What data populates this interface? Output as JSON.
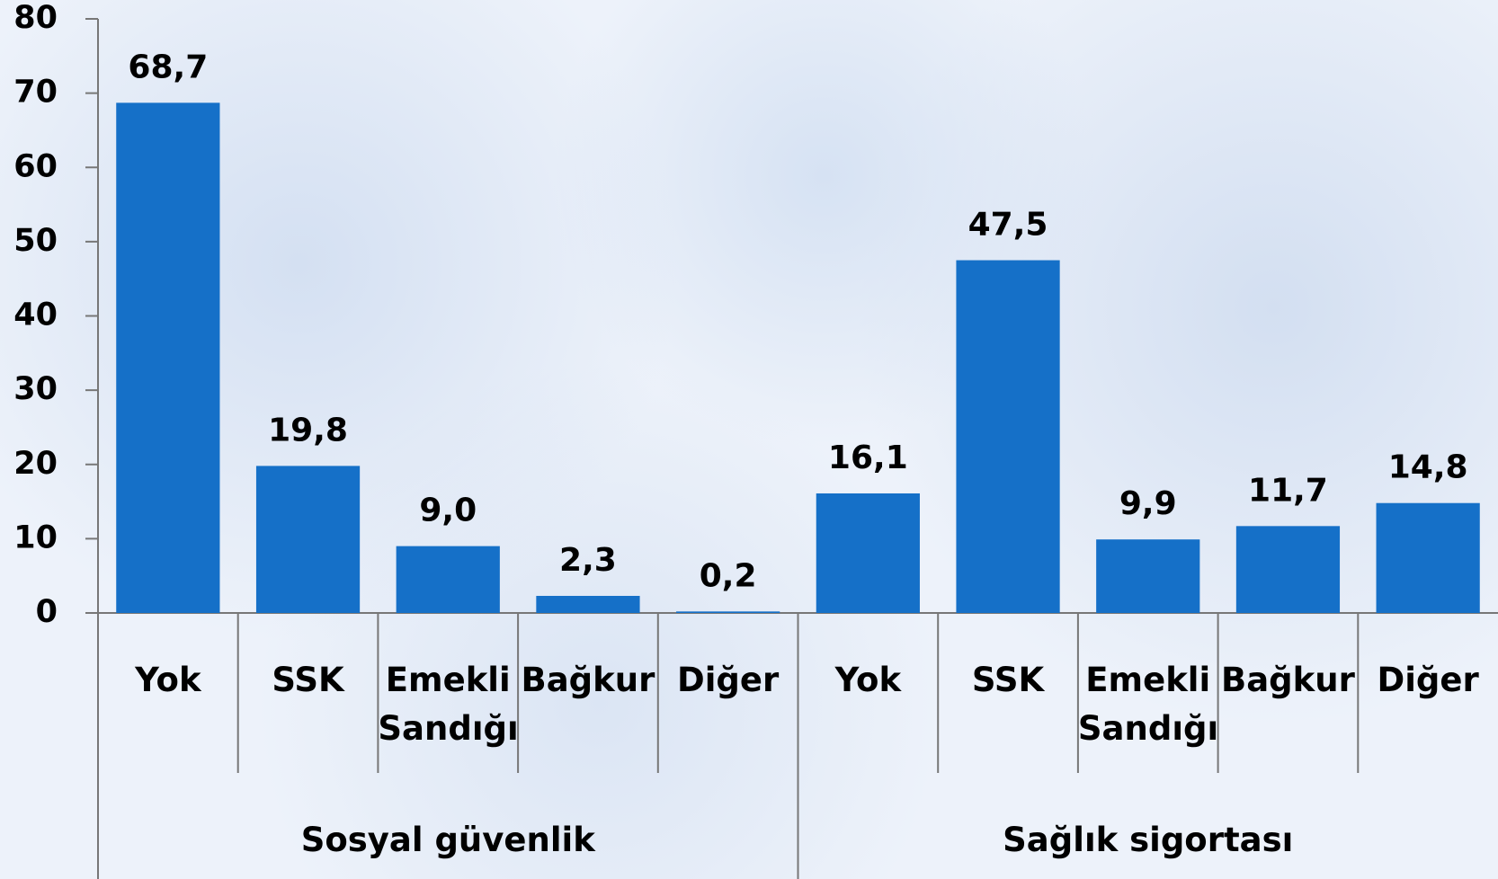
{
  "chart_data": {
    "type": "bar",
    "categories": [
      "Yok",
      "SSK",
      "Emekli Sandığı",
      "Bağkur",
      "Diğer",
      "Yok",
      "SSK",
      "Emekli Sandığı",
      "Bağkur",
      "Diğer"
    ],
    "groups": [
      "Sosyal güvenlik",
      "Sağlık sigortası"
    ],
    "values": [
      68.7,
      19.8,
      9.0,
      2.3,
      0.2,
      16.1,
      47.5,
      9.9,
      11.7,
      14.8
    ],
    "value_labels": [
      "68,7",
      "19,8",
      "9,0",
      "2,3",
      "0,2",
      "16,1",
      "47,5",
      "9,9",
      "11,7",
      "14,8"
    ],
    "color": "#1570c8",
    "ylim": [
      0,
      80
    ],
    "yticks": [
      0,
      10,
      20,
      30,
      40,
      50,
      60,
      70,
      80
    ]
  }
}
